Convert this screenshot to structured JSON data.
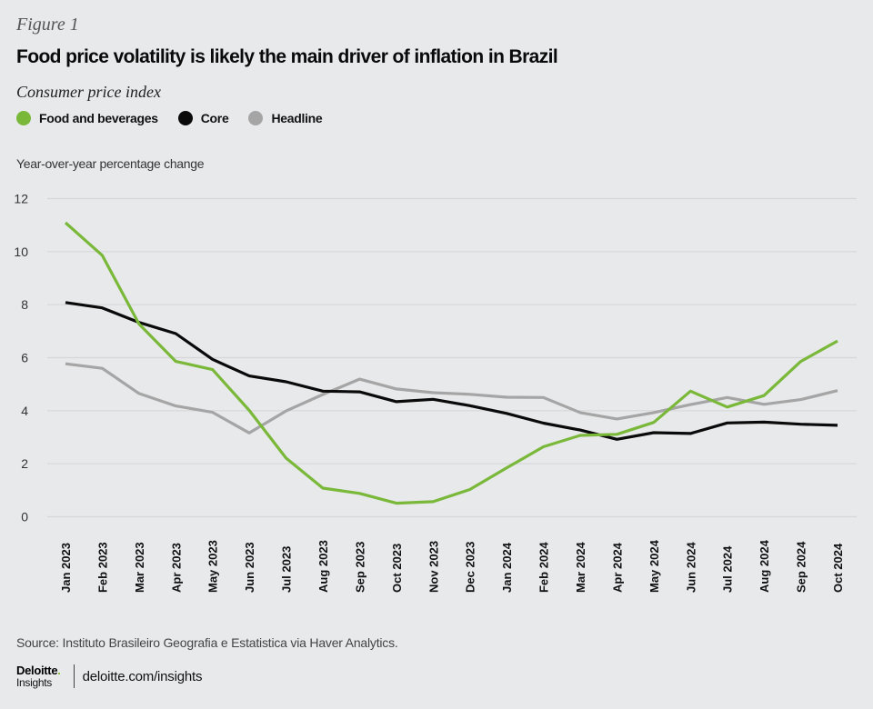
{
  "figure_label": "Figure 1",
  "title": "Food price volatility is likely the main driver of inflation in Brazil",
  "subtitle": "Consumer price index",
  "legend": [
    {
      "label": "Food and beverages",
      "color": "#7ab83a"
    },
    {
      "label": "Core",
      "color": "#0a0a0a"
    },
    {
      "label": "Headline",
      "color": "#a5a5a5"
    }
  ],
  "source": "Source: Instituto Brasileiro Geografia e Estatistica via Haver Analytics.",
  "footer": {
    "logo_top": "Deloitte",
    "logo_dot": ".",
    "logo_bottom": "Insights",
    "link": "deloitte.com/insights"
  },
  "chart_data": {
    "type": "line",
    "title": "Food price volatility is likely the main driver of inflation in Brazil",
    "subtitle": "Consumer price index",
    "xlabel": "",
    "ylabel": "Year-over-year percentage change",
    "ylim": [
      0,
      12
    ],
    "yticks": [
      0,
      2,
      4,
      6,
      8,
      10,
      12
    ],
    "grid": true,
    "legend_position": "top-left",
    "categories": [
      "Jan 2023",
      "Feb 2023",
      "Mar 2023",
      "Apr 2023",
      "May 2023",
      "Jun 2023",
      "Jul 2023",
      "Aug 2023",
      "Sep 2023",
      "Oct 2023",
      "Nov 2023",
      "Dec 2023",
      "Jan 2024",
      "Feb 2024",
      "Mar 2024",
      "Apr 2024",
      "May 2024",
      "Jun 2024",
      "Jul 2024",
      "Aug 2024",
      "Sep 2024",
      "Oct 2024"
    ],
    "series": [
      {
        "name": "Headline",
        "color": "#a5a5a5",
        "values": [
          5.77,
          5.6,
          4.65,
          4.18,
          3.94,
          3.16,
          3.99,
          4.61,
          5.19,
          4.82,
          4.68,
          4.62,
          4.51,
          4.5,
          3.93,
          3.69,
          3.93,
          4.23,
          4.5,
          4.24,
          4.42,
          4.76
        ]
      },
      {
        "name": "Core",
        "color": "#0a0a0a",
        "values": [
          8.08,
          7.88,
          7.33,
          6.91,
          5.94,
          5.31,
          5.09,
          4.74,
          4.71,
          4.34,
          4.43,
          4.19,
          3.9,
          3.53,
          3.27,
          2.92,
          3.17,
          3.14,
          3.54,
          3.57,
          3.49,
          3.45
        ]
      },
      {
        "name": "Food and beverages",
        "color": "#7ab83a",
        "values": [
          11.09,
          9.86,
          7.27,
          5.86,
          5.55,
          4.01,
          2.21,
          1.08,
          0.88,
          0.51,
          0.57,
          1.03,
          1.84,
          2.64,
          3.07,
          3.11,
          3.56,
          4.74,
          4.14,
          4.57,
          5.86,
          6.63
        ]
      }
    ]
  }
}
